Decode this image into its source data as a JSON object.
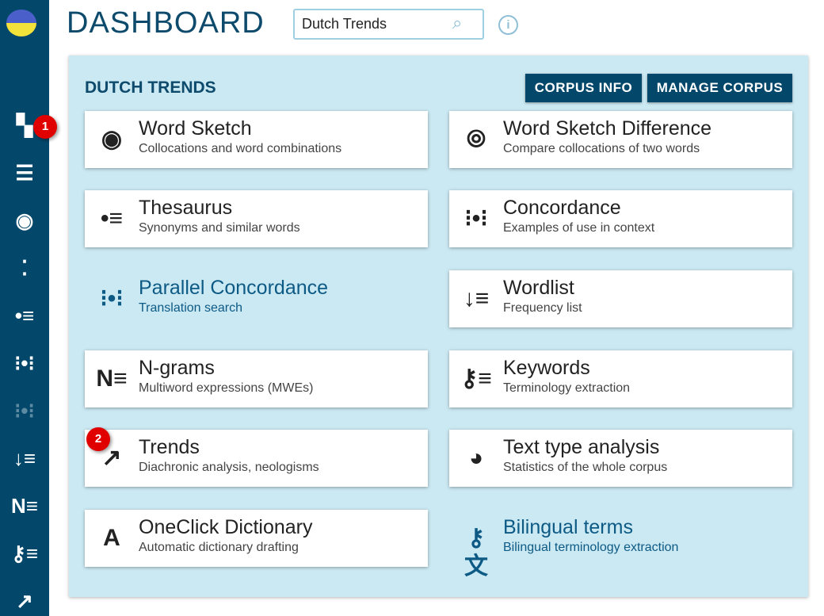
{
  "header": {
    "title": "DASHBOARD",
    "search_value": "Dutch Trends"
  },
  "sidebar": {
    "items": [
      {
        "icon": "dashboard-icon",
        "glyph": "▚"
      },
      {
        "icon": "corpus-list-icon",
        "glyph": "☰"
      },
      {
        "icon": "word-sketch-icon",
        "glyph": "◉"
      },
      {
        "icon": "word-sketch-difference-icon",
        "glyph": "⁚"
      },
      {
        "icon": "thesaurus-icon",
        "glyph": "•≡"
      },
      {
        "icon": "concordance-icon",
        "glyph": "⁝•⁝"
      },
      {
        "icon": "parallel-concordance-icon",
        "glyph": "⁝•⁝"
      },
      {
        "icon": "wordlist-icon",
        "glyph": "↓≡"
      },
      {
        "icon": "ngrams-icon",
        "glyph": "N≡"
      },
      {
        "icon": "keywords-icon",
        "glyph": "⚷≡"
      },
      {
        "icon": "trends-icon",
        "glyph": "↗"
      }
    ],
    "badge": "1"
  },
  "panel": {
    "title": "DUTCH TRENDS",
    "corpus_info": "CORPUS INFO",
    "manage_corpus": "MANAGE CORPUS"
  },
  "cards": [
    {
      "name": "Word Sketch",
      "desc": "Collocations and word combinations",
      "icon": "word-sketch-icon",
      "glyph": "◉"
    },
    {
      "name": "Word Sketch Difference",
      "desc": "Compare collocations of two words",
      "icon": "word-sketch-difference-icon",
      "glyph": "⦾"
    },
    {
      "name": "Thesaurus",
      "desc": "Synonyms and similar words",
      "icon": "thesaurus-icon",
      "glyph": "•≡"
    },
    {
      "name": "Concordance",
      "desc": "Examples of use in context",
      "icon": "concordance-icon",
      "glyph": "⁝•⁝"
    },
    {
      "name": "Parallel Concordance",
      "desc": "Translation search",
      "icon": "parallel-concordance-icon",
      "glyph": "⁝•⁝"
    },
    {
      "name": "Wordlist",
      "desc": "Frequency list",
      "icon": "wordlist-icon",
      "glyph": "↓≡"
    },
    {
      "name": "N-grams",
      "desc": "Multiword expressions (MWEs)",
      "icon": "ngrams-icon",
      "glyph": "N≡"
    },
    {
      "name": "Keywords",
      "desc": "Terminology extraction",
      "icon": "keywords-icon",
      "glyph": "⚷≡"
    },
    {
      "name": "Trends",
      "desc": "Diachronic analysis, neologisms",
      "icon": "trends-icon",
      "glyph": "↗"
    },
    {
      "name": "Text type analysis",
      "desc": "Statistics of the whole corpus",
      "icon": "text-type-analysis-icon",
      "glyph": "◕"
    },
    {
      "name": "OneClick Dictionary",
      "desc": "Automatic dictionary drafting",
      "icon": "oneclick-dictionary-icon",
      "glyph": "A"
    },
    {
      "name": "Bilingual terms",
      "desc": "Bilingual terminology extraction",
      "icon": "bilingual-terms-icon",
      "glyph": "⚷文"
    }
  ],
  "card_badge": "2"
}
